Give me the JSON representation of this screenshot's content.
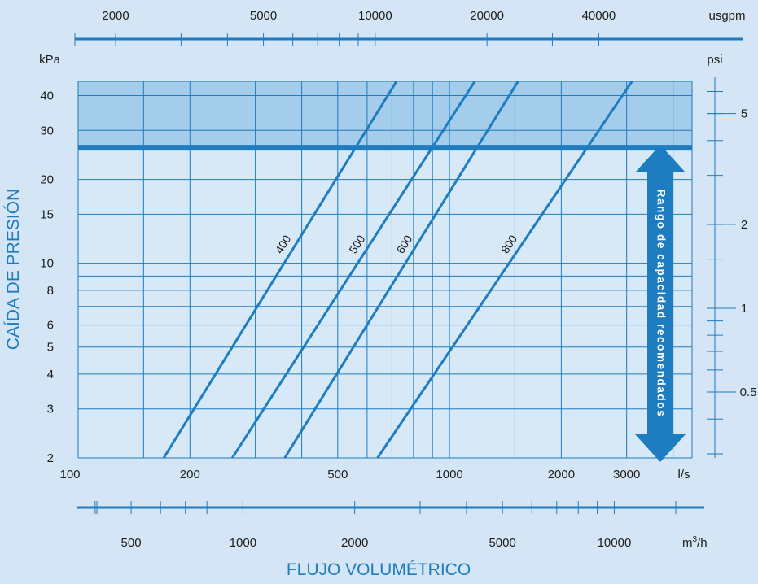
{
  "chart_data": {
    "type": "line",
    "x": {
      "scale": "log",
      "unit": "l/s",
      "range": [
        100,
        4500
      ],
      "ticks": [
        100,
        200,
        500,
        1000,
        2000,
        3000
      ],
      "tick_labels": [
        "100",
        "200",
        "500",
        "1000",
        "2000",
        "3000"
      ],
      "grid": [
        150,
        200,
        300,
        400,
        500,
        600,
        700,
        800,
        900,
        1000,
        1500,
        2000,
        3000,
        4000
      ]
    },
    "y": {
      "scale": "log",
      "unit": "kPa",
      "range": [
        2,
        45
      ],
      "ticks": [
        2,
        3,
        4,
        5,
        6,
        8,
        10,
        15,
        20,
        30,
        40
      ],
      "tick_labels": [
        "2",
        "3",
        "4",
        "5",
        "6",
        "8",
        "10",
        "15",
        "20",
        "30",
        "40"
      ],
      "grid": [
        2,
        3,
        4,
        5,
        6,
        7,
        8,
        9,
        10,
        15,
        20,
        30,
        40
      ]
    },
    "top_axis": {
      "unit": "usgpm",
      "labels": [
        {
          "value": 2000,
          "text": "2000"
        },
        {
          "value": 5000,
          "text": "5000"
        },
        {
          "value": 10000,
          "text": "10000"
        },
        {
          "value": 20000,
          "text": "20000"
        },
        {
          "value": 40000,
          "text": "40000"
        }
      ],
      "minor": [
        2000,
        3000,
        4000,
        5000,
        6000,
        7000,
        8000,
        9000,
        10000,
        20000,
        30000,
        40000
      ]
    },
    "bottom_axis": {
      "unit_base": "m",
      "unit_sup": "3",
      "unit_tail": "/h",
      "labels": [
        {
          "value": 500,
          "text": "500"
        },
        {
          "value": 1000,
          "text": "1000"
        },
        {
          "value": 2000,
          "text": "2000"
        },
        {
          "value": 5000,
          "text": "5000"
        },
        {
          "value": 10000,
          "text": "10000"
        }
      ],
      "minor": [
        400,
        500,
        600,
        700,
        800,
        900,
        1000,
        2000,
        3000,
        4000,
        5000,
        6000,
        7000,
        8000,
        9000,
        10000
      ]
    },
    "right_axis": {
      "unit": "psi",
      "labels": [
        {
          "value": 0.5,
          "text": "0.5"
        },
        {
          "value": 1,
          "text": "1"
        },
        {
          "value": 2,
          "text": "2"
        },
        {
          "value": 5,
          "text": "5"
        }
      ],
      "minor": [
        0.3,
        0.4,
        0.5,
        0.6,
        0.7,
        0.8,
        0.9,
        1,
        1.5,
        2,
        3,
        4,
        5,
        6
      ]
    },
    "series": [
      {
        "name": "400",
        "points": [
          [
            170,
            2
          ],
          [
            720,
            45
          ]
        ]
      },
      {
        "name": "500",
        "points": [
          [
            260,
            2
          ],
          [
            1170,
            45
          ]
        ]
      },
      {
        "name": "600",
        "points": [
          [
            360,
            2
          ],
          [
            1530,
            45
          ]
        ]
      },
      {
        "name": "800",
        "points": [
          [
            640,
            2
          ],
          [
            3100,
            45
          ]
        ]
      }
    ],
    "recommended_limit_kpa": 26,
    "shaded_above_kpa": 26,
    "range_arrow_label": "Rango de capacidad recomendados",
    "ylabel": "CAÍDA DE PRESIÓN",
    "xlabel": "FLUJO VOLUMÉTRICO",
    "colors": {
      "background": "#d4e5f5",
      "plot": "#d7e8f6",
      "shade": "#a3cdeb",
      "line": "#1e7cc0",
      "text": "#1d1d1b"
    }
  }
}
